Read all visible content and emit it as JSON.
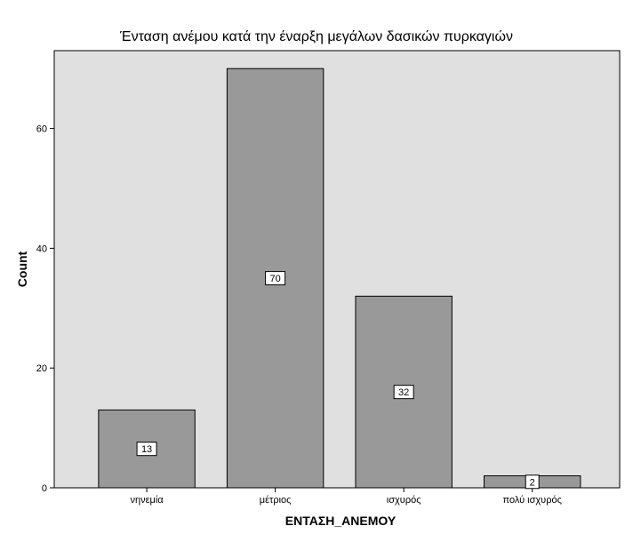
{
  "chart_data": {
    "type": "bar",
    "title": "Ένταση ανέμου κατά την έναρξη μεγάλων δασικών πυρκαγιών",
    "xlabel": "ΕΝΤΑΣΗ_ΑΝΕΜΟΥ",
    "ylabel": "Count",
    "categories": [
      "νηνεμία",
      "μέτριος",
      "ισχυρός",
      "πολύ ισχυρός"
    ],
    "values": [
      13,
      70,
      32,
      2
    ],
    "data_labels": [
      "13",
      "70",
      "32",
      "2"
    ],
    "y_ticks": [
      0,
      20,
      40,
      60
    ],
    "ylim": [
      0,
      73
    ],
    "grid": false,
    "legend": "none",
    "colors": {
      "bar_fill": "#999999",
      "bar_stroke": "#000000",
      "plot_background": "#e0e0e0",
      "page_background": "#ffffff"
    }
  }
}
